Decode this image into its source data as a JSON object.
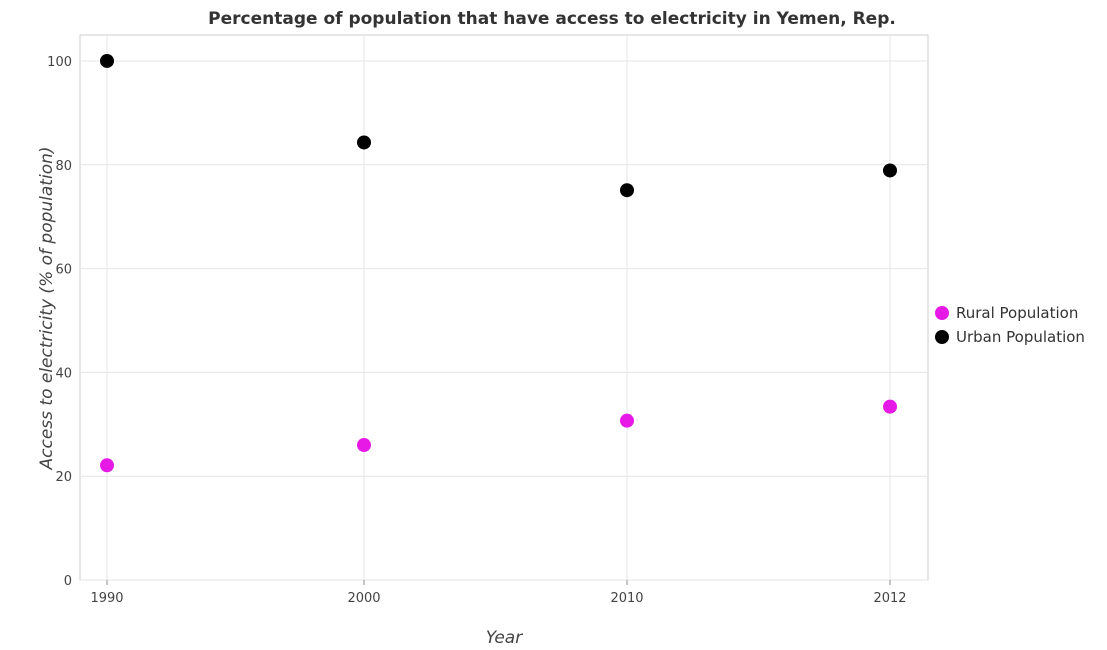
{
  "chart_data": {
    "type": "scatter",
    "title": "Percentage of population that have access to electricity in Yemen, Rep.",
    "xlabel": "Year",
    "ylabel": "Access to electricity (% of population)",
    "categories": [
      "1990",
      "2000",
      "2010",
      "2012"
    ],
    "ylim": [
      0,
      105
    ],
    "yticks": [
      "0",
      "20",
      "40",
      "60",
      "80",
      "100"
    ],
    "grid": true,
    "legend_position": "right",
    "series": [
      {
        "name": "Rural Population",
        "color": "#e619e6",
        "values": [
          22.1,
          26.0,
          30.7,
          33.4
        ]
      },
      {
        "name": "Urban Population",
        "color": "#000000",
        "values": [
          100.0,
          84.3,
          75.1,
          78.9
        ]
      }
    ]
  }
}
